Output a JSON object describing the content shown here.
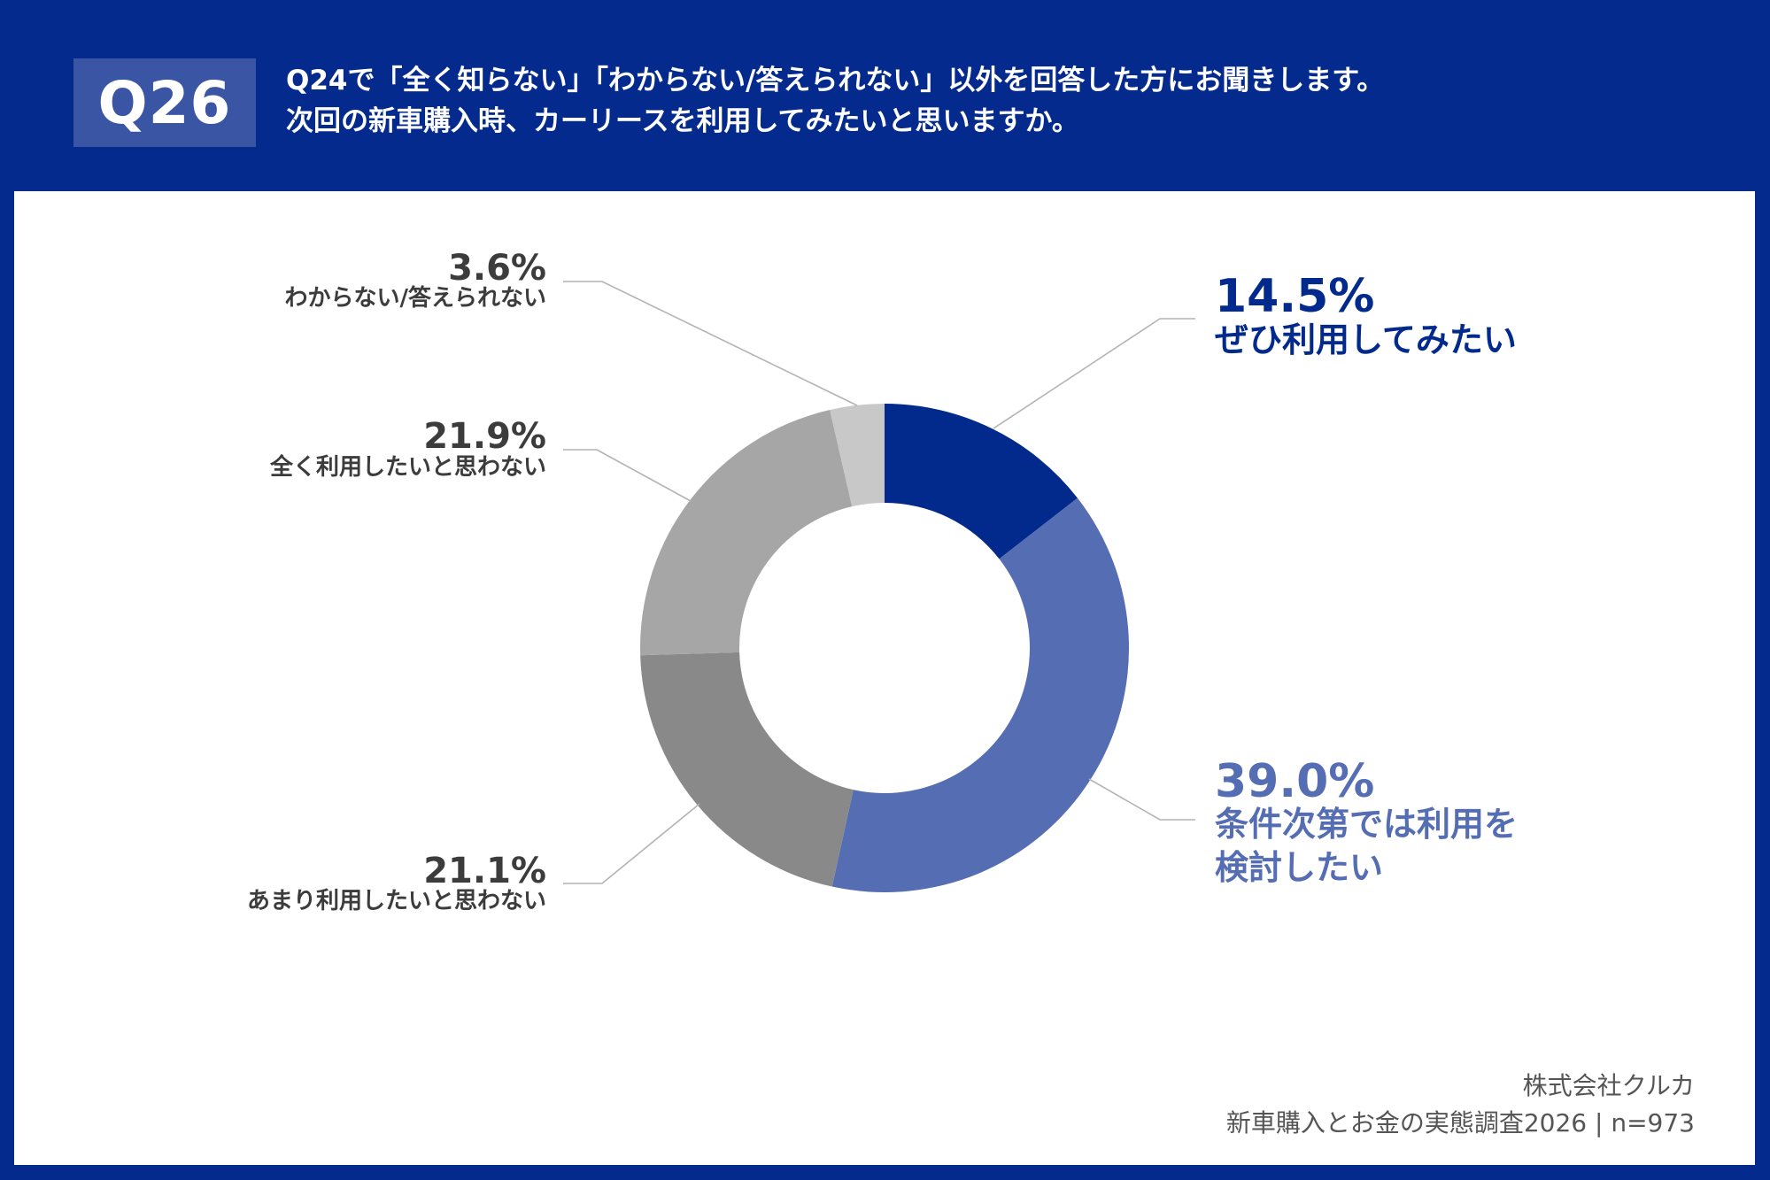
{
  "question": {
    "badge": "Q26",
    "line1": "Q24で「全く知らない」「わからない/答えられない」以外を回答した方にお聞きします。",
    "line2": "次回の新車購入時、カーリースを利用してみたいと思いますか。"
  },
  "chart_data": {
    "type": "pie",
    "variant": "donut",
    "title": "次回の新車購入時、カーリースを利用してみたいと思いますか。",
    "slices": [
      {
        "label": "ぜひ利用してみたい",
        "pct_label": "14.5%",
        "value": 14.5,
        "color": "#012a8c",
        "side": "right"
      },
      {
        "label": "条件次第では利用を検討したい",
        "label_lines": [
          "条件次第では利用を",
          "検討したい"
        ],
        "pct_label": "39.0%",
        "value": 39.0,
        "color": "#556db3",
        "side": "right"
      },
      {
        "label": "あまり利用したいと思わない",
        "pct_label": "21.1%",
        "value": 21.1,
        "color": "#898989",
        "side": "left"
      },
      {
        "label": "全く利用したいと思わない",
        "pct_label": "21.9%",
        "value": 21.9,
        "color": "#a6a6a6",
        "side": "left"
      },
      {
        "label": "わからない/答えられない",
        "pct_label": "3.6%",
        "value": 3.6,
        "color": "#c8c8c8",
        "side": "left"
      }
    ]
  },
  "footer": {
    "company": "株式会社クルカ",
    "survey": "新車購入とお金の実態調査2026 | n=973"
  }
}
